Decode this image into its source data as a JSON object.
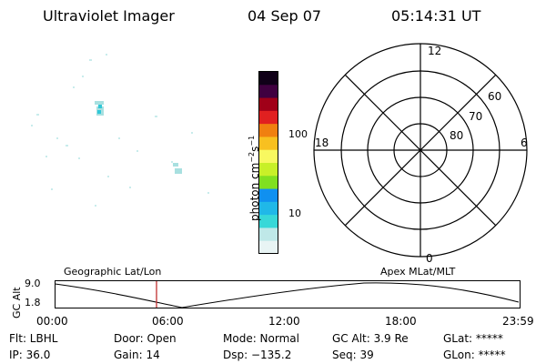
{
  "header": {
    "title": "Ultraviolet Imager",
    "date": "04 Sep 07",
    "time": "05:14:31 UT"
  },
  "colorbar": {
    "unit": "photon cm",
    "exp1": "−2",
    "mid": "s",
    "exp2": "−1",
    "tick_high": "100",
    "tick_low": "10",
    "colors": [
      "#e8f4f4",
      "#bfe8e8",
      "#38d8d8",
      "#20b8e8",
      "#1090f0",
      "#80e020",
      "#c8f028",
      "#f8f860",
      "#f8c020",
      "#f08010",
      "#e02020",
      "#a00018",
      "#400040",
      "#100018"
    ]
  },
  "polar": {
    "labels": {
      "top": "12",
      "left": "18",
      "right": "6",
      "bottom": "0"
    },
    "rings": [
      "60",
      "70",
      "80"
    ]
  },
  "timeline": {
    "title_left": "Geographic Lat/Lon",
    "title_right": "Apex MLat/MLT",
    "ylabel": "GC Alt",
    "y_high": "9.0",
    "y_low": "1.8",
    "x_ticks": [
      "00:00",
      "06:00",
      "12:00",
      "18:00",
      "23:59"
    ],
    "marker_color": "#c03030"
  },
  "footer": {
    "row1": {
      "flt": "Flt: LBHL",
      "door": "Door: Open",
      "mode": "Mode: Normal",
      "gcalt": "GC Alt: 3.9 Re",
      "glat": "GLat: *****"
    },
    "row2": {
      "ip": "IP: 36.0",
      "gain": "Gain: 14",
      "dsp": "Dsp: −135.2",
      "seq": "Seq: 39",
      "glon": "GLon: *****"
    }
  }
}
